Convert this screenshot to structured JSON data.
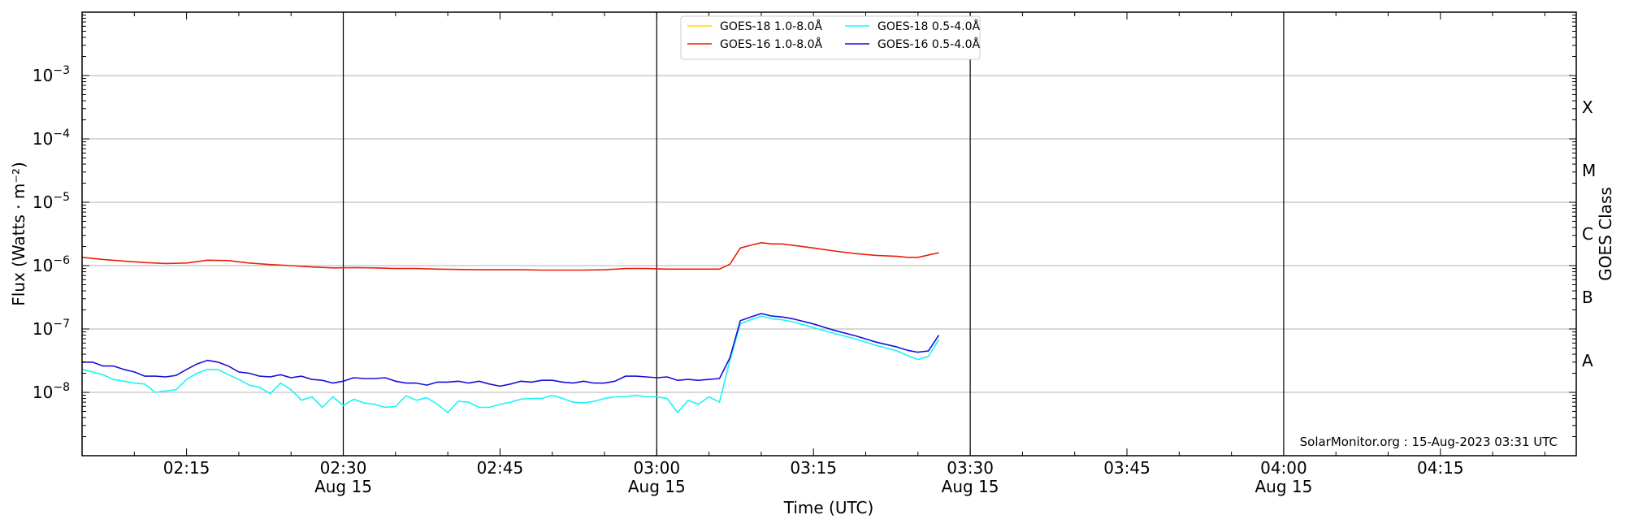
{
  "chart_data": {
    "type": "line",
    "ylabel": "Flux (Watts · m⁻²)",
    "ylabel_right": "GOES Class",
    "xlabel": "Time (UTC)",
    "y_scale": "log",
    "ylim": [
      1e-09,
      0.01
    ],
    "xlim": [
      "02:05",
      "04:28"
    ],
    "grid": "horizontal",
    "legend_position": "top-center",
    "credit": "SolarMonitor.org : 15-Aug-2023 03:31 UTC",
    "y_ticks": [
      {
        "value": 1e-08,
        "base": "10",
        "exp": "−8"
      },
      {
        "value": 1e-07,
        "base": "10",
        "exp": "−7"
      },
      {
        "value": 1e-06,
        "base": "10",
        "exp": "−6"
      },
      {
        "value": 1e-05,
        "base": "10",
        "exp": "−5"
      },
      {
        "value": 0.0001,
        "base": "10",
        "exp": "−4"
      },
      {
        "value": 0.001,
        "base": "10",
        "exp": "−3"
      }
    ],
    "x_ticks": [
      {
        "time": "02:15",
        "label": "02:15",
        "date": ""
      },
      {
        "time": "02:30",
        "label": "02:30",
        "date": "Aug 15"
      },
      {
        "time": "02:45",
        "label": "02:45",
        "date": ""
      },
      {
        "time": "03:00",
        "label": "03:00",
        "date": "Aug 15"
      },
      {
        "time": "03:15",
        "label": "03:15",
        "date": ""
      },
      {
        "time": "03:30",
        "label": "03:30",
        "date": "Aug 15"
      },
      {
        "time": "03:45",
        "label": "03:45",
        "date": ""
      },
      {
        "time": "04:00",
        "label": "04:00",
        "date": "Aug 15"
      },
      {
        "time": "04:15",
        "label": "04:15",
        "date": ""
      }
    ],
    "vertical_lines": [
      "02:30",
      "03:00",
      "03:30",
      "04:00"
    ],
    "goes_classes": [
      {
        "label": "X",
        "lower": 0.0001,
        "upper": 0.001
      },
      {
        "label": "M",
        "lower": 1e-05,
        "upper": 0.0001
      },
      {
        "label": "C",
        "lower": 1e-06,
        "upper": 1e-05
      },
      {
        "label": "B",
        "lower": 1e-07,
        "upper": 1e-06
      },
      {
        "label": "A",
        "lower": 1e-08,
        "upper": 1e-07
      }
    ],
    "series": [
      {
        "name": "GOES-18 1.0-8.0Å",
        "color": "#ffd700",
        "x": [],
        "y": []
      },
      {
        "name": "GOES-16 1.0-8.0Å",
        "color": "#e8200c",
        "x": [
          "02:05",
          "02:07",
          "02:09",
          "02:11",
          "02:13",
          "02:15",
          "02:17",
          "02:19",
          "02:21",
          "02:23",
          "02:25",
          "02:27",
          "02:29",
          "02:31",
          "02:33",
          "02:35",
          "02:37",
          "02:39",
          "02:41",
          "02:43",
          "02:45",
          "02:47",
          "02:49",
          "02:51",
          "02:53",
          "02:55",
          "02:57",
          "02:59",
          "03:01",
          "03:03",
          "03:05",
          "03:06",
          "03:07",
          "03:08",
          "03:09",
          "03:10",
          "03:11",
          "03:12",
          "03:13",
          "03:15",
          "03:17",
          "03:19",
          "03:21",
          "03:23",
          "03:24",
          "03:25",
          "03:27"
        ],
        "y": [
          1.35e-06,
          1.25e-06,
          1.18e-06,
          1.12e-06,
          1.08e-06,
          1.1e-06,
          1.22e-06,
          1.2e-06,
          1.1e-06,
          1.04e-06,
          1e-06,
          9.5e-07,
          9.2e-07,
          9.3e-07,
          9.2e-07,
          9e-07,
          9e-07,
          8.8e-07,
          8.7e-07,
          8.6e-07,
          8.6e-07,
          8.6e-07,
          8.5e-07,
          8.5e-07,
          8.5e-07,
          8.6e-07,
          9e-07,
          9e-07,
          8.8e-07,
          8.8e-07,
          8.8e-07,
          8.8e-07,
          1.05e-06,
          1.9e-06,
          2.1e-06,
          2.3e-06,
          2.2e-06,
          2.2e-06,
          2.1e-06,
          1.9e-06,
          1.7e-06,
          1.55e-06,
          1.45e-06,
          1.4e-06,
          1.35e-06,
          1.35e-06,
          1.6e-06
        ]
      },
      {
        "name": "GOES-18 0.5-4.0Å",
        "color": "#19f5f5",
        "x": [
          "02:05",
          "02:06",
          "02:07",
          "02:08",
          "02:09",
          "02:10",
          "02:11",
          "02:12",
          "02:13",
          "02:14",
          "02:15",
          "02:16",
          "02:17",
          "02:18",
          "02:19",
          "02:20",
          "02:21",
          "02:22",
          "02:23",
          "02:24",
          "02:25",
          "02:26",
          "02:27",
          "02:28",
          "02:29",
          "02:30",
          "02:31",
          "02:32",
          "02:33",
          "02:34",
          "02:35",
          "02:36",
          "02:37",
          "02:38",
          "02:39",
          "02:40",
          "02:41",
          "02:42",
          "02:43",
          "02:44",
          "02:45",
          "02:46",
          "02:47",
          "02:48",
          "02:49",
          "02:50",
          "02:51",
          "02:52",
          "02:53",
          "02:54",
          "02:55",
          "02:56",
          "02:57",
          "02:58",
          "02:59",
          "03:00",
          "03:01",
          "03:02",
          "03:03",
          "03:04",
          "03:05",
          "03:06",
          "03:07",
          "03:08",
          "03:09",
          "03:10",
          "03:11",
          "03:12",
          "03:13",
          "03:15",
          "03:17",
          "03:19",
          "03:21",
          "03:23",
          "03:24",
          "03:25",
          "03:26",
          "03:27"
        ],
        "y": [
          2.3e-08,
          2.1e-08,
          1.9e-08,
          1.6e-08,
          1.5e-08,
          1.4e-08,
          1.35e-08,
          1e-08,
          1.05e-08,
          1.1e-08,
          1.6e-08,
          2e-08,
          2.3e-08,
          2.3e-08,
          1.9e-08,
          1.6e-08,
          1.3e-08,
          1.2e-08,
          9.5e-09,
          1.4e-08,
          1.1e-08,
          7.5e-09,
          8.5e-09,
          5.8e-09,
          8.5e-09,
          6.2e-09,
          7.8e-09,
          6.8e-09,
          6.5e-09,
          5.8e-09,
          6e-09,
          8.8e-09,
          7.5e-09,
          8.2e-09,
          6.5e-09,
          4.8e-09,
          7.2e-09,
          7e-09,
          5.8e-09,
          5.8e-09,
          6.5e-09,
          7e-09,
          7.8e-09,
          8e-09,
          8e-09,
          9e-09,
          8e-09,
          7e-09,
          6.8e-09,
          7.2e-09,
          8e-09,
          8.5e-09,
          8.5e-09,
          9e-09,
          8.5e-09,
          8.5e-09,
          8e-09,
          4.8e-09,
          7.5e-09,
          6.5e-09,
          8.5e-09,
          7e-09,
          3.2e-08,
          1.2e-07,
          1.4e-07,
          1.6e-07,
          1.45e-07,
          1.4e-07,
          1.3e-07,
          1.05e-07,
          8.5e-08,
          7e-08,
          5.5e-08,
          4.5e-08,
          3.8e-08,
          3.3e-08,
          3.7e-08,
          6.8e-08
        ]
      },
      {
        "name": "GOES-16 0.5-4.0Å",
        "color": "#1a0fd9",
        "x": [
          "02:05",
          "02:06",
          "02:07",
          "02:08",
          "02:09",
          "02:10",
          "02:11",
          "02:12",
          "02:13",
          "02:14",
          "02:15",
          "02:16",
          "02:17",
          "02:18",
          "02:19",
          "02:20",
          "02:21",
          "02:22",
          "02:23",
          "02:24",
          "02:25",
          "02:26",
          "02:27",
          "02:28",
          "02:29",
          "02:30",
          "02:31",
          "02:32",
          "02:33",
          "02:34",
          "02:35",
          "02:36",
          "02:37",
          "02:38",
          "02:39",
          "02:40",
          "02:41",
          "02:42",
          "02:43",
          "02:44",
          "02:45",
          "02:46",
          "02:47",
          "02:48",
          "02:49",
          "02:50",
          "02:51",
          "02:52",
          "02:53",
          "02:54",
          "02:55",
          "02:56",
          "02:57",
          "02:58",
          "02:59",
          "03:00",
          "03:01",
          "03:02",
          "03:03",
          "03:04",
          "03:05",
          "03:06",
          "03:07",
          "03:08",
          "03:09",
          "03:10",
          "03:11",
          "03:12",
          "03:13",
          "03:15",
          "03:17",
          "03:19",
          "03:21",
          "03:23",
          "03:24",
          "03:25",
          "03:26",
          "03:27"
        ],
        "y": [
          3e-08,
          3e-08,
          2.6e-08,
          2.6e-08,
          2.3e-08,
          2.1e-08,
          1.8e-08,
          1.8e-08,
          1.75e-08,
          1.85e-08,
          2.3e-08,
          2.8e-08,
          3.2e-08,
          3e-08,
          2.6e-08,
          2.1e-08,
          2e-08,
          1.8e-08,
          1.75e-08,
          1.9e-08,
          1.7e-08,
          1.8e-08,
          1.6e-08,
          1.55e-08,
          1.4e-08,
          1.5e-08,
          1.7e-08,
          1.65e-08,
          1.65e-08,
          1.7e-08,
          1.5e-08,
          1.4e-08,
          1.4e-08,
          1.3e-08,
          1.45e-08,
          1.45e-08,
          1.5e-08,
          1.4e-08,
          1.5e-08,
          1.35e-08,
          1.25e-08,
          1.35e-08,
          1.5e-08,
          1.45e-08,
          1.55e-08,
          1.55e-08,
          1.45e-08,
          1.4e-08,
          1.5e-08,
          1.4e-08,
          1.4e-08,
          1.5e-08,
          1.8e-08,
          1.8e-08,
          1.75e-08,
          1.7e-08,
          1.75e-08,
          1.55e-08,
          1.6e-08,
          1.55e-08,
          1.6e-08,
          1.65e-08,
          3.5e-08,
          1.35e-07,
          1.55e-07,
          1.75e-07,
          1.6e-07,
          1.55e-07,
          1.45e-07,
          1.2e-07,
          9.5e-08,
          7.8e-08,
          6.2e-08,
          5.2e-08,
          4.6e-08,
          4.3e-08,
          4.5e-08,
          8e-08
        ]
      }
    ]
  }
}
